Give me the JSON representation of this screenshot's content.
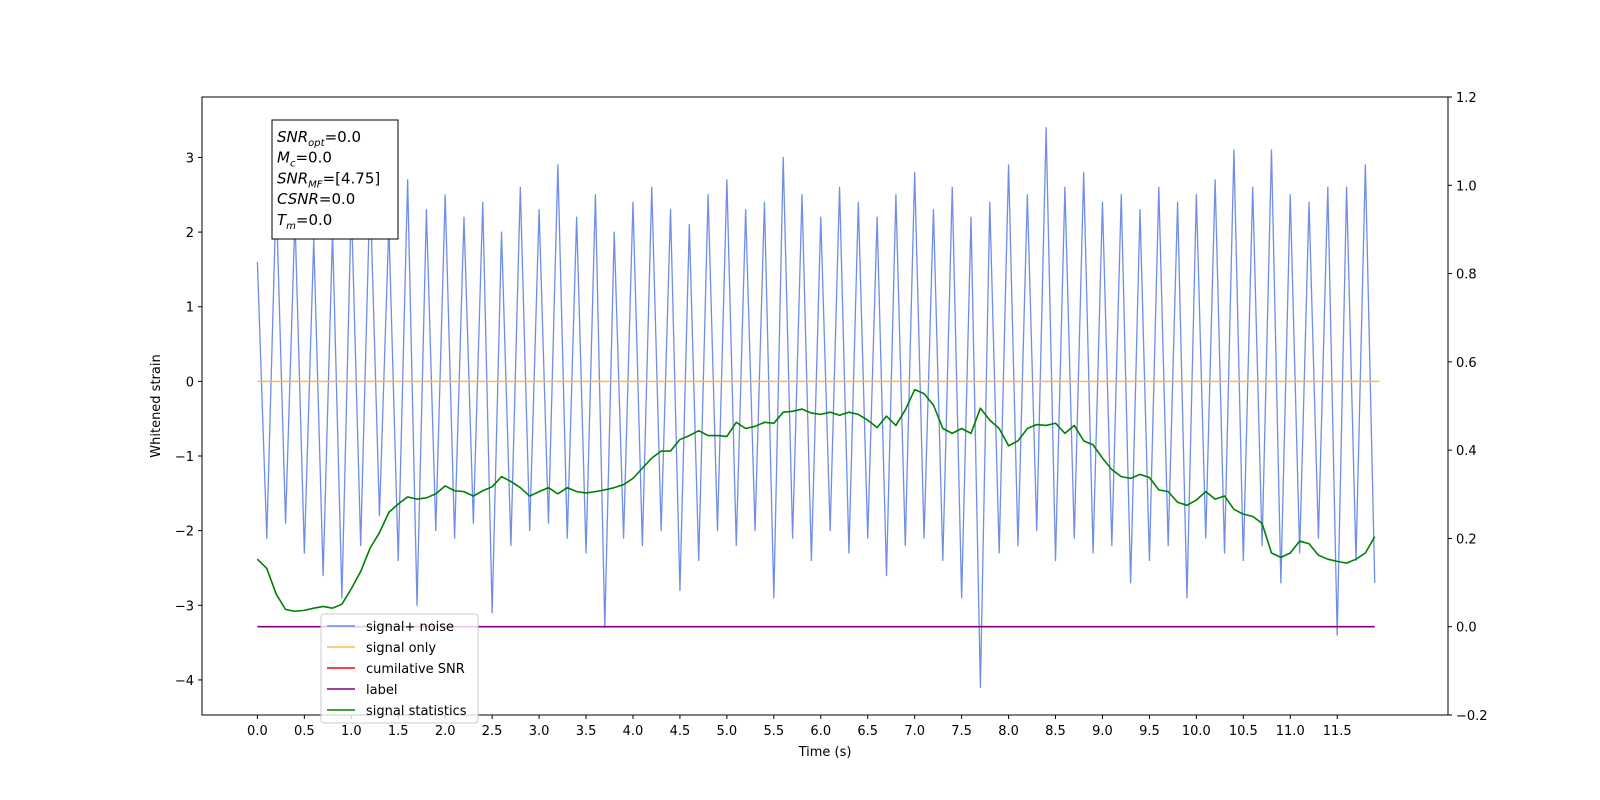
{
  "chart_data": {
    "type": "line",
    "x_label": "Time (s)",
    "y_label": "Whitened strain",
    "xlim": [
      -0.59,
      12.68
    ],
    "ylim": [
      -4.47,
      3.81
    ],
    "y2lim": [
      -0.2,
      1.2
    ],
    "xticks": [
      {
        "value": 0,
        "label": "0.0"
      },
      0.5,
      {
        "value": 1,
        "label": "1.0"
      },
      1.5,
      {
        "value": 2,
        "label": "2.0"
      },
      2.5,
      {
        "value": 3,
        "label": "3.0"
      },
      3.5,
      {
        "value": 4,
        "label": "4.0"
      },
      4.5,
      {
        "value": 5,
        "label": "5.0"
      },
      5.5,
      {
        "value": 6,
        "label": "6.0"
      },
      6.5,
      {
        "value": 7,
        "label": "7.0"
      },
      7.5,
      {
        "value": 8,
        "label": "8.0"
      },
      8.5,
      {
        "value": 9,
        "label": "9.0"
      },
      9.5,
      {
        "value": 10,
        "label": "10.0"
      },
      10.5,
      {
        "value": 11,
        "label": "11.0"
      },
      11.5
    ],
    "yticks": [
      {
        "value": -4,
        "label": "−4"
      },
      {
        "value": -3,
        "label": "−3"
      },
      {
        "value": -2,
        "label": "−2"
      },
      {
        "value": -1,
        "label": "−1"
      },
      0,
      1,
      2,
      3
    ],
    "y2ticks": [
      {
        "value": -0.2,
        "label": "−0.2"
      },
      {
        "value": 0,
        "label": "0.0"
      },
      0.2,
      0.4,
      0.6,
      0.8,
      {
        "value": 1,
        "label": "1.0"
      },
      1.2
    ],
    "x": [
      0,
      0.1,
      0.2,
      0.3,
      0.4,
      0.5,
      0.6,
      0.7,
      0.8,
      0.9,
      1,
      1.1,
      1.2,
      1.3,
      1.4,
      1.5,
      1.6,
      1.7,
      1.8,
      1.9,
      2,
      2.1,
      2.2,
      2.3,
      2.4,
      2.5,
      2.6,
      2.7,
      2.8,
      2.9,
      3,
      3.1,
      3.2,
      3.3,
      3.4,
      3.5,
      3.6,
      3.7,
      3.8,
      3.9,
      4,
      4.1,
      4.2,
      4.3,
      4.4,
      4.5,
      4.6,
      4.7,
      4.8,
      4.9,
      5,
      5.1,
      5.2,
      5.3,
      5.4,
      5.5,
      5.6,
      5.7,
      5.8,
      5.9,
      6,
      6.1,
      6.2,
      6.3,
      6.4,
      6.5,
      6.6,
      6.7,
      6.8,
      6.9,
      7,
      7.1,
      7.2,
      7.3,
      7.4,
      7.5,
      7.6,
      7.7,
      7.8,
      7.9,
      8,
      8.1,
      8.2,
      8.3,
      8.4,
      8.5,
      8.6,
      8.7,
      8.8,
      8.9,
      9,
      9.1,
      9.2,
      9.3,
      9.4,
      9.5,
      9.6,
      9.7,
      9.8,
      9.9,
      10,
      10.1,
      10.2,
      10.3,
      10.4,
      10.5,
      10.6,
      10.7,
      10.8,
      10.9,
      11,
      11.1,
      11.2,
      11.3,
      11.4,
      11.5,
      11.6,
      11.7,
      11.8,
      11.9
    ],
    "series": [
      {
        "name": "signal+ noise",
        "color": "#6f8ee8",
        "values": [
          1.6,
          -2.1,
          2.5,
          -1.9,
          2.2,
          -2.3,
          1.9,
          -2.6,
          2.0,
          -2.9,
          2.4,
          -2.2,
          2.6,
          -1.8,
          2.1,
          -2.4,
          2.7,
          -3.0,
          2.3,
          -2.0,
          2.5,
          -2.1,
          2.2,
          -1.9,
          2.4,
          -3.1,
          2.0,
          -2.2,
          2.6,
          -2.0,
          2.3,
          -1.9,
          2.9,
          -2.1,
          2.2,
          -2.3,
          2.5,
          -3.3,
          2.0,
          -2.1,
          2.4,
          -2.2,
          2.6,
          -2.0,
          2.3,
          -2.8,
          2.1,
          -2.4,
          2.5,
          -2.0,
          2.7,
          -2.2,
          2.3,
          -2.0,
          2.4,
          -2.9,
          3.0,
          -2.1,
          2.5,
          -2.4,
          2.2,
          -2.0,
          2.6,
          -2.3,
          2.4,
          -2.1,
          2.2,
          -2.6,
          2.5,
          -2.2,
          2.8,
          -2.1,
          2.3,
          -2.4,
          2.6,
          -2.9,
          2.2,
          -4.1,
          2.4,
          -2.3,
          2.9,
          -2.2,
          2.5,
          -2.0,
          3.4,
          -2.4,
          2.6,
          -2.1,
          2.8,
          -2.3,
          2.4,
          -2.2,
          2.5,
          -2.7,
          2.3,
          -2.4,
          2.6,
          -2.2,
          2.4,
          -2.9,
          2.5,
          -2.1,
          2.7,
          -2.3,
          3.1,
          -2.4,
          2.6,
          -2.2,
          3.1,
          -2.7,
          2.5,
          -2.3,
          2.4,
          -2.1,
          2.6,
          -3.4,
          2.6,
          -2.4,
          2.9,
          -2.7
        ]
      },
      {
        "name": "signal only",
        "color": "#ffb74d",
        "x": [
          0,
          11.95
        ],
        "values": [
          0,
          0
        ]
      },
      {
        "name": "cumilative SNR",
        "color": "#ff0000"
      },
      {
        "name": "label",
        "color": "#800080",
        "axis": "y2",
        "x": [
          0,
          11.9
        ],
        "values": [
          0,
          0
        ]
      },
      {
        "name": "signal statistics",
        "color": "#008000",
        "axis": "y2",
        "values": [
          0.153,
          0.132,
          0.074,
          0.039,
          0.035,
          0.037,
          0.042,
          0.046,
          0.042,
          0.051,
          0.086,
          0.125,
          0.178,
          0.213,
          0.259,
          0.278,
          0.294,
          0.289,
          0.292,
          0.301,
          0.319,
          0.308,
          0.306,
          0.296,
          0.308,
          0.317,
          0.34,
          0.329,
          0.315,
          0.296,
          0.306,
          0.315,
          0.301,
          0.315,
          0.306,
          0.303,
          0.306,
          0.31,
          0.315,
          0.322,
          0.336,
          0.359,
          0.382,
          0.398,
          0.398,
          0.424,
          0.433,
          0.444,
          0.433,
          0.433,
          0.431,
          0.463,
          0.449,
          0.454,
          0.463,
          0.461,
          0.486,
          0.488,
          0.493,
          0.484,
          0.481,
          0.486,
          0.479,
          0.486,
          0.481,
          0.468,
          0.451,
          0.477,
          0.456,
          0.491,
          0.537,
          0.528,
          0.502,
          0.449,
          0.438,
          0.449,
          0.438,
          0.495,
          0.468,
          0.449,
          0.41,
          0.421,
          0.449,
          0.458,
          0.456,
          0.461,
          0.438,
          0.456,
          0.421,
          0.412,
          0.382,
          0.356,
          0.34,
          0.336,
          0.345,
          0.338,
          0.31,
          0.306,
          0.282,
          0.275,
          0.287,
          0.306,
          0.289,
          0.296,
          0.266,
          0.255,
          0.25,
          0.234,
          0.167,
          0.157,
          0.167,
          0.194,
          0.188,
          0.162,
          0.153,
          0.148,
          0.144,
          0.153,
          0.167,
          0.204
        ]
      }
    ],
    "annotation": [
      {
        "symbol": "SNR",
        "subscript": "opt",
        "text": "=0.0"
      },
      {
        "symbol": "M",
        "subscript": "c",
        "text": "=0.0"
      },
      {
        "symbol": "SNR",
        "subscript": "MF",
        "text": "=[4.75]"
      },
      {
        "symbol": "CSNR",
        "text": "=0.0"
      },
      {
        "symbol": "T",
        "subscript": "m",
        "text": "=0.0"
      }
    ]
  }
}
